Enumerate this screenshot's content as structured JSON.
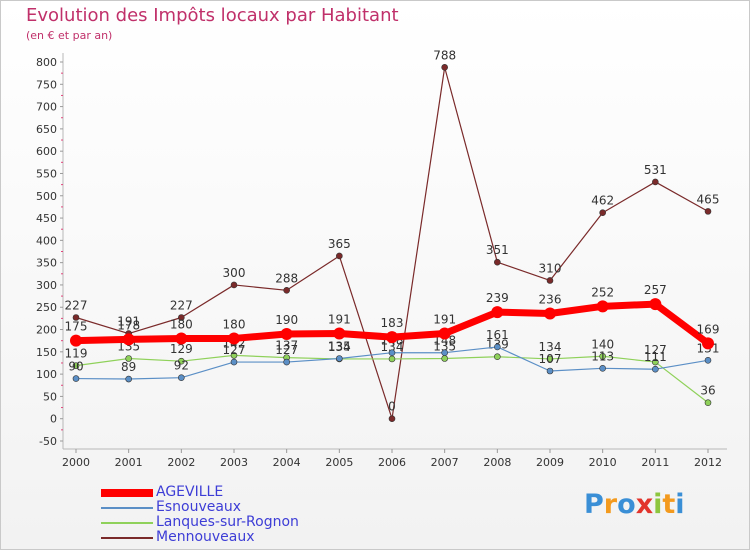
{
  "header": {
    "title": "Evolution des Impôts locaux par Habitant",
    "subtitle": "(en € et par an)"
  },
  "logo": {
    "text": "Proxiti",
    "letters": [
      "P",
      "r",
      "o",
      "x",
      "i",
      "t",
      "i"
    ],
    "colors": [
      "#3a8fd6",
      "#f39a1e",
      "#3a8fd6",
      "#e2342c",
      "#8dc63f",
      "#f39a1e",
      "#3a8fd6"
    ]
  },
  "chart_data": {
    "type": "line",
    "title": "Evolution des Impôts locaux par Habitant",
    "subtitle": "(en € et par an)",
    "xlabel": "",
    "ylabel": "",
    "categories": [
      "2000",
      "2001",
      "2002",
      "2003",
      "2004",
      "2005",
      "2006",
      "2007",
      "2008",
      "2009",
      "2010",
      "2011",
      "2012"
    ],
    "ylim": [
      -50,
      800
    ],
    "yticks": [
      -50,
      0,
      50,
      100,
      150,
      200,
      250,
      300,
      350,
      400,
      450,
      500,
      550,
      600,
      650,
      700,
      750,
      800
    ],
    "grid": false,
    "legend_position": "bottom-left",
    "series": [
      {
        "name": "Mennouveaux",
        "color": "#7a2a2a",
        "width": 1.2,
        "values": [
          227,
          191,
          227,
          300,
          288,
          365,
          0,
          788,
          351,
          310,
          462,
          531,
          465
        ],
        "labels": [
          "227",
          "191",
          "227",
          "300",
          "288",
          "365",
          "0",
          "788",
          "351",
          "310",
          "462",
          "531",
          "465"
        ]
      },
      {
        "name": "Lanques-sur-Rognon",
        "color": "#8fd15a",
        "width": 1.2,
        "values": [
          119,
          135,
          129,
          142,
          137,
          134,
          134,
          135,
          139,
          134,
          140,
          127,
          36
        ],
        "labels": [
          "119",
          "135",
          "129",
          "142",
          "137",
          "134",
          "134",
          "135",
          "139",
          "134",
          "140",
          "127",
          "36"
        ]
      },
      {
        "name": "Esnouveaux",
        "color": "#5b8fc6",
        "width": 1.2,
        "values": [
          90,
          89,
          92,
          127,
          127,
          135,
          148,
          148,
          161,
          107,
          113,
          111,
          131
        ],
        "labels": [
          "90",
          "89",
          "92",
          "127",
          "127",
          "135",
          "148",
          "148",
          "161",
          "107",
          "113",
          "111",
          "131"
        ]
      },
      {
        "name": "AGEVILLE",
        "color": "#ff0000",
        "width": 7,
        "values": [
          175,
          178,
          180,
          180,
          190,
          191,
          183,
          191,
          239,
          236,
          252,
          257,
          169
        ],
        "labels": [
          "175",
          "178",
          "180",
          "180",
          "190",
          "191",
          "183",
          "191",
          "239",
          "236",
          "252",
          "257",
          "169"
        ]
      }
    ]
  },
  "legend": {
    "items": [
      {
        "label": "AGEVILLE",
        "color": "#ff0000",
        "thickness": 8
      },
      {
        "label": "Esnouveaux",
        "color": "#5b8fc6",
        "thickness": 2
      },
      {
        "label": "Lanques-sur-Rognon",
        "color": "#8fd15a",
        "thickness": 2
      },
      {
        "label": "Mennouveaux",
        "color": "#7a2a2a",
        "thickness": 2
      }
    ]
  }
}
